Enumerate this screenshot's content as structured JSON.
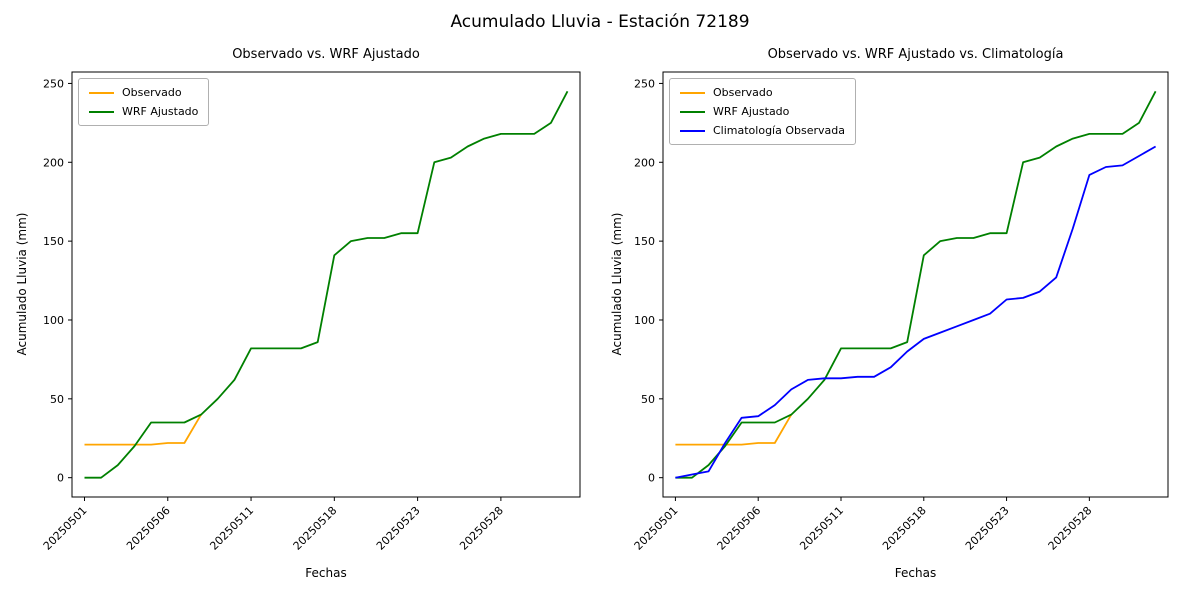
{
  "figure": {
    "suptitle": "Acumulado Lluvia - Estación 72189"
  },
  "chart_data": [
    {
      "type": "line",
      "title": "Observado vs. WRF Ajustado",
      "xlabel": "Fechas",
      "ylabel": "Acumulado Lluvia (mm)",
      "x_tick_labels": [
        "20250501",
        "20250506",
        "20250511",
        "20250518",
        "20250523",
        "20250528"
      ],
      "x_tick_positions": [
        0,
        5,
        10,
        15,
        20,
        25
      ],
      "y_ticks": [
        0,
        50,
        100,
        150,
        200,
        250
      ],
      "xlim": [
        -0.75,
        29.75
      ],
      "ylim": [
        -12.25,
        257.25
      ],
      "grid": false,
      "legend_position": "upper left",
      "series": [
        {
          "name": "Observado",
          "color": "#ffa500",
          "x": [
            0,
            1,
            2,
            3,
            4,
            5,
            6,
            7
          ],
          "values": [
            21,
            21,
            21,
            21,
            21,
            22,
            22,
            40
          ]
        },
        {
          "name": "WRF Ajustado",
          "color": "#008000",
          "x": [
            0,
            1,
            2,
            3,
            4,
            5,
            6,
            7,
            8,
            9,
            10,
            11,
            12,
            13,
            14,
            15,
            16,
            17,
            18,
            19,
            20,
            21,
            22,
            23,
            24,
            25,
            26,
            27,
            28,
            29
          ],
          "values": [
            0,
            0,
            8,
            20,
            35,
            35,
            35,
            40,
            50,
            62,
            82,
            82,
            82,
            82,
            86,
            141,
            150,
            152,
            152,
            155,
            155,
            200,
            203,
            210,
            215,
            218,
            218,
            218,
            225,
            245
          ]
        }
      ]
    },
    {
      "type": "line",
      "title": "Observado vs. WRF Ajustado vs. Climatología",
      "xlabel": "Fechas",
      "ylabel": "Acumulado Lluvia (mm)",
      "x_tick_labels": [
        "20250501",
        "20250506",
        "20250511",
        "20250518",
        "20250523",
        "20250528"
      ],
      "x_tick_positions": [
        0,
        5,
        10,
        15,
        20,
        25
      ],
      "y_ticks": [
        0,
        50,
        100,
        150,
        200,
        250
      ],
      "xlim": [
        -0.75,
        29.75
      ],
      "ylim": [
        -12.25,
        257.25
      ],
      "grid": false,
      "legend_position": "upper left",
      "series": [
        {
          "name": "Observado",
          "color": "#ffa500",
          "x": [
            0,
            1,
            2,
            3,
            4,
            5,
            6,
            7
          ],
          "values": [
            21,
            21,
            21,
            21,
            21,
            22,
            22,
            40
          ]
        },
        {
          "name": "WRF Ajustado",
          "color": "#008000",
          "x": [
            0,
            1,
            2,
            3,
            4,
            5,
            6,
            7,
            8,
            9,
            10,
            11,
            12,
            13,
            14,
            15,
            16,
            17,
            18,
            19,
            20,
            21,
            22,
            23,
            24,
            25,
            26,
            27,
            28,
            29
          ],
          "values": [
            0,
            0,
            8,
            20,
            35,
            35,
            35,
            40,
            50,
            62,
            82,
            82,
            82,
            82,
            86,
            141,
            150,
            152,
            152,
            155,
            155,
            200,
            203,
            210,
            215,
            218,
            218,
            218,
            225,
            245
          ]
        },
        {
          "name": "Climatología Observada",
          "color": "#0000ff",
          "x": [
            0,
            1,
            2,
            3,
            4,
            5,
            6,
            7,
            8,
            9,
            10,
            11,
            12,
            13,
            14,
            15,
            16,
            17,
            18,
            19,
            20,
            21,
            22,
            23,
            24,
            25,
            26,
            27,
            28,
            29
          ],
          "values": [
            0,
            2,
            4,
            22,
            38,
            39,
            46,
            56,
            62,
            63,
            63,
            64,
            64,
            70,
            80,
            88,
            92,
            96,
            100,
            104,
            113,
            114,
            118,
            127,
            158,
            192,
            197,
            198,
            204,
            210
          ]
        }
      ]
    }
  ]
}
